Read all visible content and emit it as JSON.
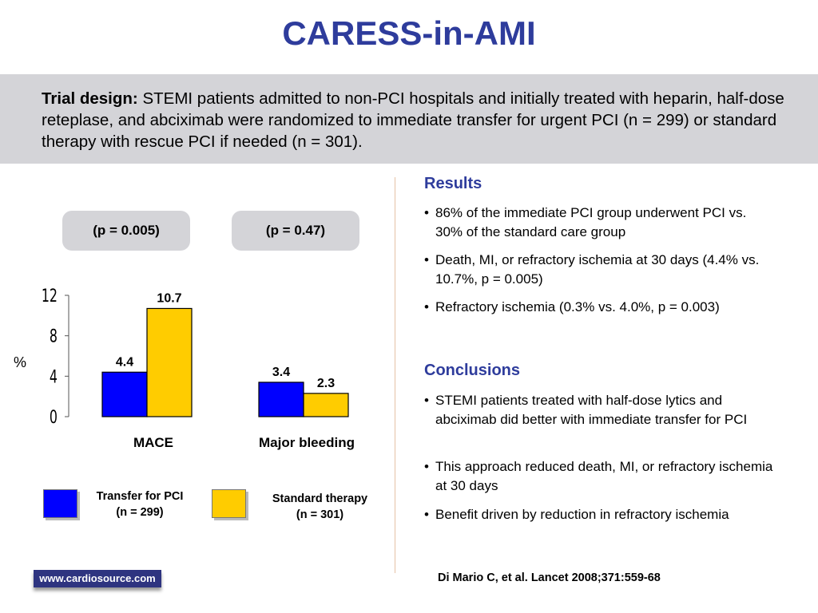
{
  "title": "CARESS-in-AMI",
  "trial_design": {
    "label": "Trial design:",
    "text": "STEMI patients admitted to non-PCI hospitals and initially treated with heparin, half-dose reteplase, and abciximab were randomized to immediate transfer for urgent PCI (n = 299) or standard therapy with rescue PCI if needed (n = 301)."
  },
  "pvalues": [
    "(p = 0.005)",
    "(p = 0.47)"
  ],
  "chart_data": {
    "type": "bar",
    "categories": [
      "MACE",
      "Major bleeding"
    ],
    "series": [
      {
        "name": "Transfer for PCI (n = 299)",
        "values": [
          4.4,
          3.4
        ],
        "color": "#0000ff"
      },
      {
        "name": "Standard therapy (n = 301)",
        "values": [
          10.7,
          2.3
        ],
        "color": "#ffcc00"
      }
    ],
    "data_labels": [
      "4.4",
      "10.7",
      "3.4",
      "2.3"
    ],
    "ylabel": "%",
    "ylim": [
      0,
      12
    ],
    "yticks": [
      "0",
      "4",
      "8",
      "12"
    ],
    "grid": false,
    "legend_position": "bottom"
  },
  "legend": [
    {
      "line1": "Transfer for PCI",
      "line2": "(n = 299)",
      "color": "#0000ff"
    },
    {
      "line1": "Standard therapy",
      "line2": "(n = 301)",
      "color": "#ffcc00"
    }
  ],
  "results": {
    "heading": "Results",
    "bullets": [
      "86% of the immediate PCI group underwent PCI vs. 30% of the standard care group",
      "Death, MI, or refractory ischemia at 30 days (4.4% vs. 10.7%, p = 0.005)",
      "Refractory ischemia (0.3% vs. 4.0%, p = 0.003)"
    ]
  },
  "conclusions": {
    "heading": "Conclusions",
    "bullets": [
      "STEMI patients treated with half-dose lytics and abciximab did better with immediate transfer for PCI",
      "This approach reduced death, MI, or refractory ischemia at 30 days",
      "Benefit driven by reduction in refractory ischemia"
    ]
  },
  "bullet_char": "•",
  "footer": {
    "logo": "www.cardiosource.com",
    "citation": "Di Mario C, et al. Lancet 2008;371:559-68"
  }
}
